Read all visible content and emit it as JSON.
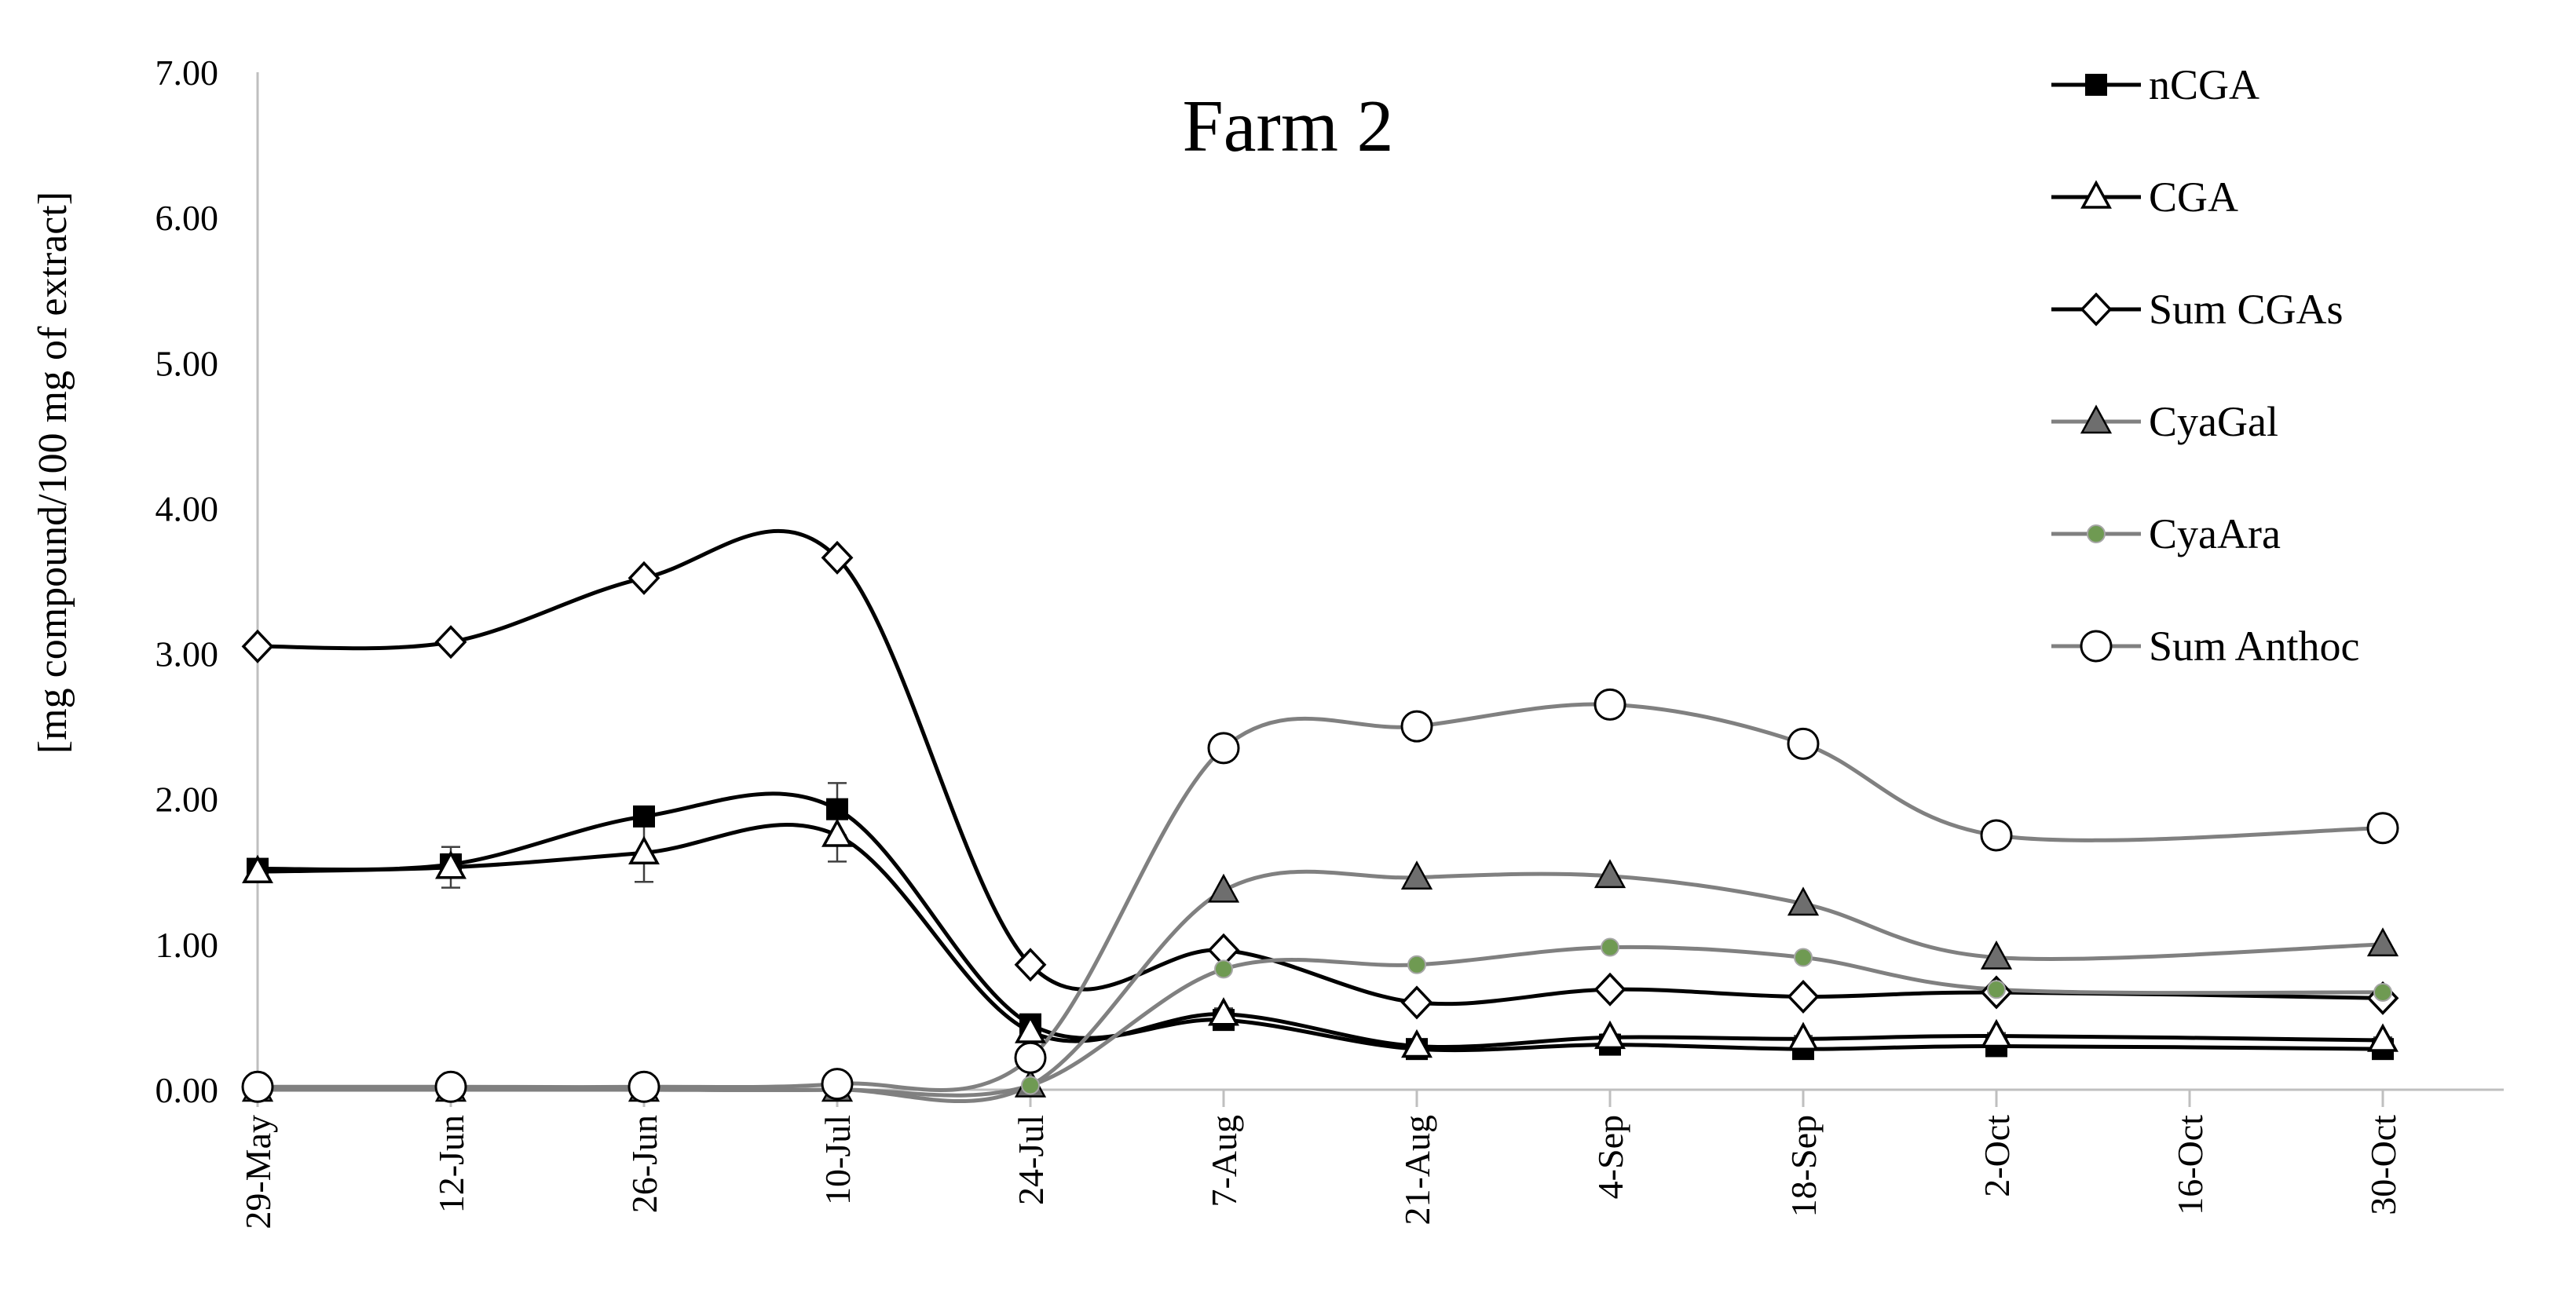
{
  "chart_data": {
    "type": "line",
    "title": "Farm 2",
    "xlabel": "",
    "ylabel": "[mg compound/100 mg of extract]",
    "ylim": [
      0,
      7
    ],
    "y_ticks": [
      "0.00",
      "1.00",
      "2.00",
      "3.00",
      "4.00",
      "5.00",
      "6.00",
      "7.00"
    ],
    "x_tick_labels": [
      "29-May",
      "12-Jun",
      "26-Jun",
      "10-Jul",
      "24-Jul",
      "7-Aug",
      "21-Aug",
      "4-Sep",
      "18-Sep",
      "2-Oct",
      "16-Oct",
      "30-Oct"
    ],
    "categories": [
      "29-May",
      "12-Jun",
      "26-Jun",
      "10-Jul",
      "24-Jul",
      "7-Aug",
      "21-Aug",
      "4-Sep",
      "18-Sep",
      "2-Oct",
      "30-Oct"
    ],
    "grid": false,
    "legend_position": "top-right",
    "smooth": true,
    "series": [
      {
        "name": "nCGA",
        "color": "#000000",
        "marker": "square-filled",
        "values": [
          1.52,
          1.55,
          1.88,
          1.93,
          0.45,
          0.48,
          0.28,
          0.31,
          0.28,
          0.3,
          0.28
        ],
        "error": [
          0.04,
          0.07,
          0.05,
          0.18,
          0.05,
          0.03,
          0.02,
          0.02,
          0.02,
          0.02,
          0.02
        ]
      },
      {
        "name": "CGA",
        "color": "#000000",
        "marker": "triangle-open",
        "values": [
          1.5,
          1.53,
          1.63,
          1.75,
          0.4,
          0.52,
          0.3,
          0.36,
          0.35,
          0.37,
          0.34
        ],
        "error": [
          0.04,
          0.14,
          0.2,
          0.18,
          0.05,
          0.04,
          0.02,
          0.02,
          0.02,
          0.02,
          0.02
        ]
      },
      {
        "name": "Sum CGAs",
        "color": "#000000",
        "marker": "diamond-open",
        "values": [
          3.05,
          3.08,
          3.52,
          3.66,
          0.86,
          0.96,
          0.6,
          0.69,
          0.64,
          0.67,
          0.63
        ]
      },
      {
        "name": "CyaGal",
        "color": "#808080",
        "marker": "triangle-filled",
        "values": [
          0.0,
          0.0,
          0.0,
          0.0,
          0.03,
          1.37,
          1.46,
          1.47,
          1.28,
          0.91,
          1.0
        ]
      },
      {
        "name": "CyaAra",
        "color": "#808080",
        "marker": "dot-green",
        "values": [
          0.0,
          0.0,
          0.0,
          0.0,
          0.03,
          0.83,
          0.86,
          0.98,
          0.91,
          0.69,
          0.67
        ]
      },
      {
        "name": "Sum Anthoc",
        "color": "#808080",
        "marker": "circle-open",
        "values": [
          0.02,
          0.02,
          0.02,
          0.04,
          0.22,
          2.35,
          2.5,
          2.65,
          2.38,
          1.75,
          1.8
        ]
      }
    ]
  }
}
